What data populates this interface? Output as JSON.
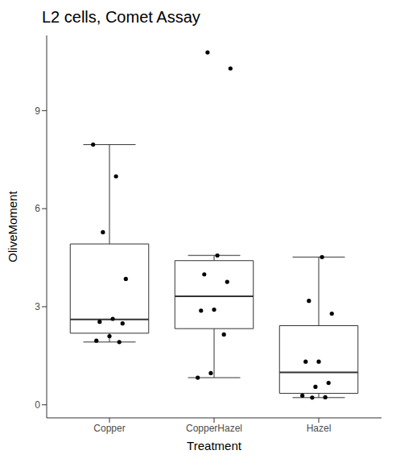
{
  "chart_data": {
    "type": "box",
    "title": "L2 cells, Comet Assay",
    "x_label": "Treatment",
    "y_label": "OliveMoment",
    "categories": [
      "Copper",
      "CopperHazel",
      "Hazel"
    ],
    "values": [
      [
        7.96,
        6.99,
        5.28,
        3.85,
        2.63,
        2.54,
        2.49,
        2.1,
        1.96,
        1.92
      ],
      [
        10.78,
        10.29,
        4.57,
        3.99,
        3.76,
        2.91,
        2.88,
        2.15,
        0.97,
        0.83
      ],
      [
        4.52,
        3.18,
        2.79,
        1.32,
        1.32,
        0.67,
        0.55,
        0.28,
        0.23,
        0.22
      ]
    ],
    "boxes": [
      {
        "q1": 2.19,
        "median": 2.61,
        "q3": 4.92,
        "whisker_low": 1.92,
        "whisker_high": 7.96
      },
      {
        "q1": 2.33,
        "median": 3.32,
        "q3": 4.41,
        "whisker_low": 0.83,
        "whisker_high": 4.57
      },
      {
        "q1": 0.35,
        "median": 0.99,
        "q3": 2.42,
        "whisker_low": 0.22,
        "whisker_high": 4.52
      }
    ],
    "ylim": [
      -0.4,
      11.3
    ],
    "yticks": [
      0,
      3,
      6,
      9
    ],
    "grid": false,
    "color": "#000000"
  }
}
